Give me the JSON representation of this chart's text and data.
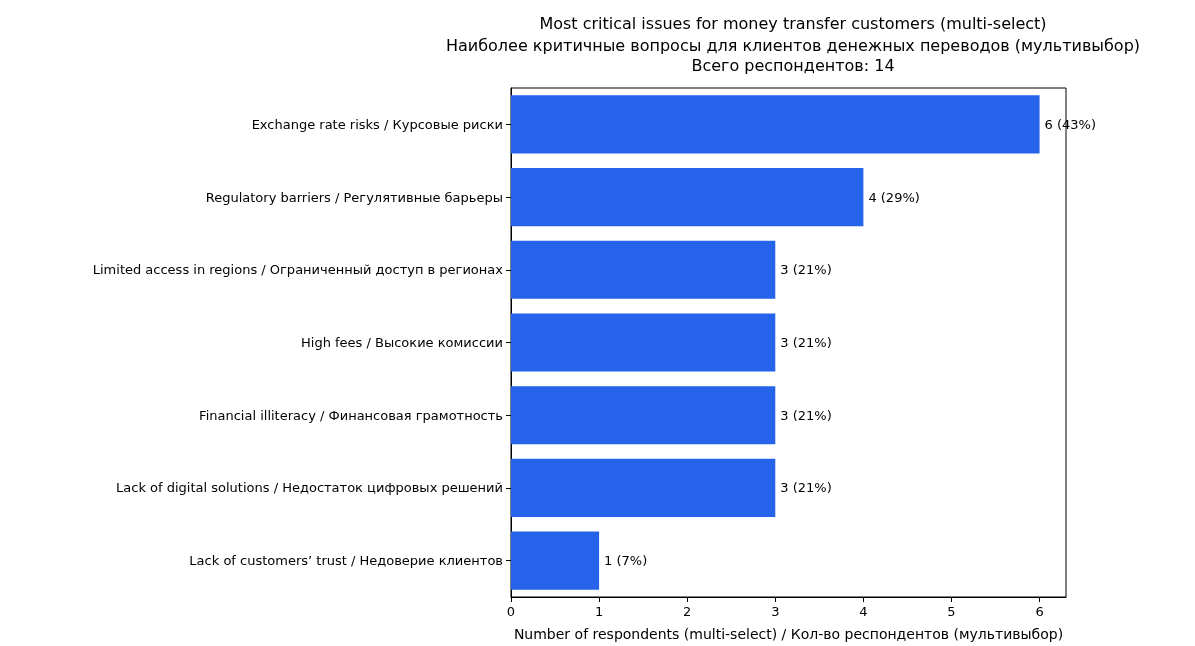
{
  "chart_data": {
    "type": "bar",
    "orientation": "horizontal",
    "title": "Most critical issues for money transfer customers (multi-select)",
    "subtitle": "Наиболее критичные вопросы для клиентов денежных переводов (мультивыбор)\nВсего респондентов: 14",
    "xlabel": "Number of respondents (multi-select) / Кол-во респондентов (мультивыбор)",
    "categories": [
      "Exchange rate risks / Курсовые риски",
      "Regulatory barriers / Регулятивные барьеры",
      "Limited access in regions / Ограниченный доступ в регионах",
      "High fees / Высокие комиссии",
      "Financial illiteracy / Финансовая грамотность",
      "Lack of digital solutions / Недостаток цифровых решений",
      "Lack of customers’ trust / Недоверие клиентов"
    ],
    "values": [
      6,
      4,
      3,
      3,
      3,
      3,
      1
    ],
    "value_labels": [
      "6 (43%)",
      "4 (29%)",
      "3 (21%)",
      "3 (21%)",
      "3 (21%)",
      "3 (21%)",
      "1 (7%)"
    ],
    "color": "#2563eb",
    "xlim": [
      0,
      6.3
    ],
    "xticks": [
      0,
      1,
      2,
      3,
      4,
      5,
      6
    ]
  }
}
